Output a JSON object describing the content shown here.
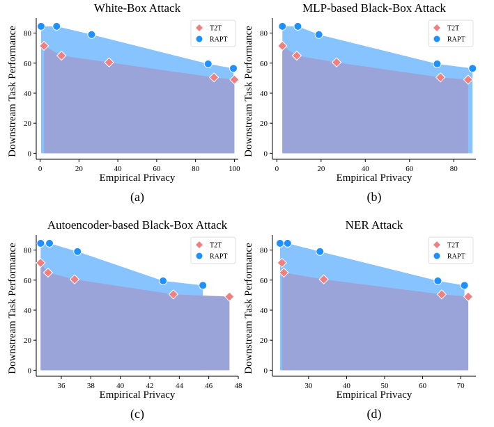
{
  "colors": {
    "t2t_marker": "#f08080",
    "t2t_fill": "#ffb6b9",
    "rapt_marker": "#1e90ff",
    "rapt_fill": "#87c3ff",
    "overlap_fill": "#9aa4d8"
  },
  "chart_data": [
    {
      "type": "area",
      "title": "White-Box Attack",
      "xlabel": "Empirical Privacy",
      "ylabel": "Downstream Task Performance",
      "caption": "(a)",
      "xlim": [
        -2,
        102
      ],
      "ylim": [
        -4,
        90
      ],
      "xticks": [
        0,
        20,
        40,
        60,
        80,
        100
      ],
      "yticks": [
        0,
        20,
        40,
        60,
        80
      ],
      "legend_position": "top-right",
      "series": [
        {
          "name": "T2T",
          "marker": "diamond",
          "points": [
            [
              2,
              71.5
            ],
            [
              11,
              65
            ],
            [
              35.5,
              60.5
            ],
            [
              89.5,
              50.5
            ],
            [
              100,
              49
            ]
          ]
        },
        {
          "name": "RAPT",
          "marker": "circle",
          "points": [
            [
              0.5,
              84.5
            ],
            [
              8.5,
              84.5
            ],
            [
              26.5,
              79
            ],
            [
              86.5,
              59.5
            ],
            [
              99.5,
              56.5
            ]
          ]
        }
      ]
    },
    {
      "type": "area",
      "title": "MLP-based Black-Box Attack",
      "xlabel": "Empirical Privacy",
      "ylabel": "Downstream Task Performance",
      "caption": "(b)",
      "xlim": [
        -2,
        90
      ],
      "ylim": [
        -4,
        90
      ],
      "xticks": [
        0,
        20,
        40,
        60,
        80
      ],
      "yticks": [
        0,
        20,
        40,
        60,
        80
      ],
      "legend_position": "top-right",
      "series": [
        {
          "name": "T2T",
          "marker": "diamond",
          "points": [
            [
              2.5,
              71.5
            ],
            [
              9,
              65
            ],
            [
              27,
              60.5
            ],
            [
              74,
              50.5
            ],
            [
              86.5,
              49
            ]
          ]
        },
        {
          "name": "RAPT",
          "marker": "circle",
          "points": [
            [
              2.5,
              84.5
            ],
            [
              9.5,
              84.5
            ],
            [
              19,
              79
            ],
            [
              72.5,
              59.5
            ],
            [
              88.5,
              56.5
            ]
          ]
        }
      ]
    },
    {
      "type": "area",
      "title": "Autoencoder-based Black-Box Attack",
      "xlabel": "Empirical Privacy",
      "ylabel": "Downstream Task Performance",
      "caption": "(c)",
      "xlim": [
        34.3,
        48
      ],
      "ylim": [
        -4,
        90
      ],
      "xticks": [
        36,
        38,
        40,
        42,
        44,
        46,
        48
      ],
      "yticks": [
        0,
        20,
        40,
        60,
        80
      ],
      "legend_position": "top-right",
      "series": [
        {
          "name": "T2T",
          "marker": "diamond",
          "points": [
            [
              34.6,
              71.5
            ],
            [
              35.1,
              65
            ],
            [
              36.9,
              60.5
            ],
            [
              43.6,
              50.5
            ],
            [
              47.4,
              49
            ]
          ]
        },
        {
          "name": "RAPT",
          "marker": "circle",
          "points": [
            [
              34.6,
              84.5
            ],
            [
              35.2,
              84.5
            ],
            [
              37.1,
              79
            ],
            [
              42.9,
              59.5
            ],
            [
              45.6,
              56.5
            ]
          ]
        }
      ]
    },
    {
      "type": "area",
      "title": "NER Attack",
      "xlabel": "Empirical Privacy",
      "ylabel": "Downstream Task Performance",
      "caption": "(d)",
      "xlim": [
        20.5,
        74
      ],
      "ylim": [
        -4,
        90
      ],
      "xticks": [
        30,
        40,
        50,
        60,
        70
      ],
      "yticks": [
        0,
        20,
        40,
        60,
        80
      ],
      "legend_position": "top-right",
      "series": [
        {
          "name": "T2T",
          "marker": "diamond",
          "points": [
            [
              23,
              71.5
            ],
            [
              23.5,
              65
            ],
            [
              34,
              60.5
            ],
            [
              65,
              50.5
            ],
            [
              72,
              49
            ]
          ]
        },
        {
          "name": "RAPT",
          "marker": "circle",
          "points": [
            [
              22.5,
              84.5
            ],
            [
              24.5,
              84.5
            ],
            [
              33,
              79
            ],
            [
              64,
              59.5
            ],
            [
              71,
              56.5
            ]
          ]
        }
      ]
    }
  ]
}
